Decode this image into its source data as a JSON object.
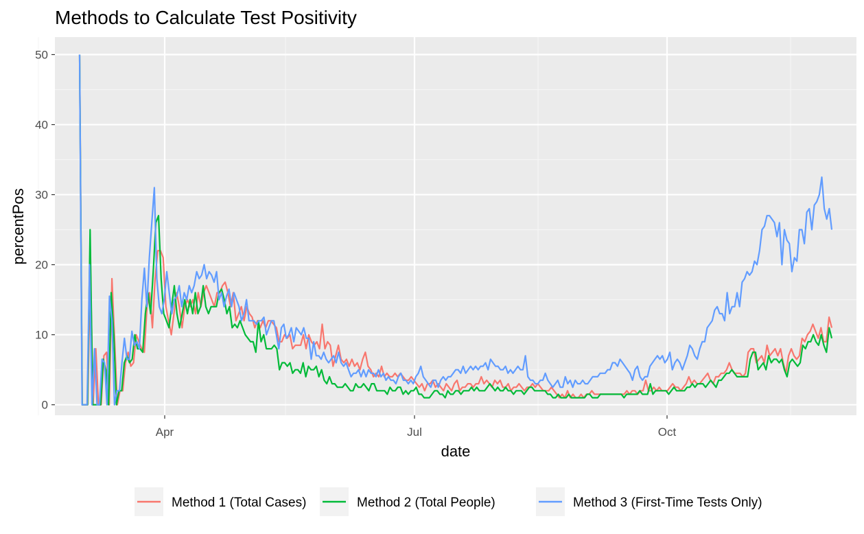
{
  "chart_data": {
    "type": "line",
    "title": "Methods to Calculate Test Positivity",
    "xlabel": "date",
    "ylabel": "percentPos",
    "x_start": "2020-03-01",
    "x_end": "2020-11-30",
    "xlim": [
      "2020-02-21",
      "2020-12-09"
    ],
    "ylim": [
      -1.5,
      52.5
    ],
    "x_ticks": [
      {
        "date": "2020-04-01",
        "label": "Apr"
      },
      {
        "date": "2020-07-01",
        "label": "Jul"
      },
      {
        "date": "2020-10-01",
        "label": "Oct"
      }
    ],
    "x_minor_breaks": [
      "2020-02-15",
      "2020-05-15",
      "2020-08-15",
      "2020-11-15"
    ],
    "y_ticks": [
      0,
      10,
      20,
      30,
      40,
      50
    ],
    "y_minor_breaks": [
      5,
      15,
      25,
      35,
      45
    ],
    "grid": true,
    "legend_position": "bottom",
    "series": [
      {
        "name": "Method 1 (Total Cases)",
        "color": "#F8766D",
        "values": [
          50,
          0,
          0,
          0,
          20,
          0,
          8,
          0,
          0,
          7,
          7.5,
          0,
          18,
          9,
          0,
          2,
          2,
          6,
          7.5,
          5.5,
          6,
          10,
          9,
          8,
          7.5,
          14,
          16,
          11,
          18,
          22,
          22,
          21,
          14,
          12,
          10,
          13,
          16,
          14,
          11,
          14,
          15,
          14,
          15,
          13,
          16,
          14,
          16,
          17,
          16,
          15,
          14,
          16,
          16,
          17,
          17.5,
          16,
          14,
          16,
          12,
          13,
          14,
          12,
          14,
          13,
          12.5,
          11,
          12,
          11,
          12,
          11,
          12,
          12,
          11.5,
          11,
          9,
          9,
          10,
          9.5,
          10,
          8,
          8.5,
          8.5,
          8.5,
          10,
          8,
          10,
          9,
          8.5,
          9,
          8,
          11.5,
          8,
          9,
          8.5,
          5.5,
          7,
          8.5,
          6.5,
          6,
          6.5,
          5.5,
          6.5,
          5.5,
          6,
          5,
          6.5,
          7.5,
          5.5,
          5,
          4,
          4.5,
          4,
          5.5,
          4,
          4.5,
          4,
          4,
          4.5,
          4,
          4.5,
          4,
          3.5,
          3.5,
          4,
          3.5,
          3,
          2.5,
          3,
          2,
          3,
          3,
          3.5,
          2.5,
          3,
          2.5,
          2,
          3,
          2.5,
          2,
          3,
          3.5,
          2,
          2.5,
          2.5,
          3,
          3,
          2.5,
          3,
          3,
          4,
          3,
          3.5,
          3,
          2.5,
          3.5,
          3,
          3.5,
          2.5,
          2.5,
          3,
          2,
          2.5,
          2.5,
          3,
          2.5,
          2,
          2.5,
          2.5,
          3,
          2.5,
          3,
          2.5,
          2,
          2,
          2,
          2.5,
          2,
          1.5,
          1,
          1.5,
          1,
          2,
          1,
          1.5,
          1,
          1,
          1.5,
          1,
          1.5,
          1.5,
          2,
          1.5,
          1.5,
          1.5,
          1.5,
          1.5,
          1.5,
          1.5,
          1.5,
          1.5,
          1.5,
          1.5,
          1.5,
          2,
          1.5,
          2,
          2,
          1.5,
          2,
          2,
          3.5,
          2,
          2,
          2.5,
          2,
          2.5,
          2,
          2,
          2,
          2.5,
          3,
          2.5,
          2.5,
          2,
          2.5,
          3,
          4,
          3,
          3.5,
          3,
          3,
          3.5,
          4,
          4.5,
          3.5,
          3,
          4,
          4,
          4.5,
          4.5,
          5,
          6,
          5,
          4.5,
          4.5,
          4.5,
          4,
          4.5,
          7.5,
          8,
          8,
          6,
          6.5,
          7,
          6,
          8.5,
          7,
          7.5,
          8,
          7,
          8,
          6,
          4.5,
          7,
          8,
          7,
          6.5,
          7,
          9.5,
          9,
          10,
          10.5,
          11.5,
          10.5,
          9.5,
          11,
          9,
          9,
          12.5,
          11
        ]
      },
      {
        "name": "Method 2 (Total People)",
        "color": "#00BA38",
        "values": [
          50,
          0,
          0,
          0,
          25,
          0,
          0,
          0,
          0,
          6.5,
          5,
          0,
          16,
          10,
          0,
          2,
          2,
          6,
          7,
          6,
          6.5,
          10,
          8,
          8,
          7.5,
          13,
          16,
          13,
          19,
          26,
          27,
          18,
          13,
          12,
          11,
          14,
          17,
          13,
          11,
          13,
          15,
          13,
          15,
          13,
          16,
          13,
          14,
          17,
          14,
          13,
          14,
          14,
          14,
          16,
          16.5,
          15,
          13,
          14,
          11,
          11.5,
          11,
          12,
          11,
          10,
          9.5,
          9,
          9,
          7.5,
          12,
          9,
          10,
          8,
          8,
          8,
          8.5,
          8,
          5,
          6,
          6,
          5.5,
          6,
          4.5,
          5,
          5,
          4.5,
          6,
          4,
          5.5,
          5,
          5,
          5.5,
          4,
          5,
          3.5,
          3,
          4,
          3,
          3,
          2.5,
          2.5,
          2.5,
          3,
          2.5,
          2,
          2,
          3,
          2.5,
          2.5,
          3,
          2.5,
          2,
          3,
          3,
          2,
          2,
          2,
          2,
          1.5,
          2.5,
          2,
          2,
          2.5,
          2.5,
          1.5,
          2,
          1.5,
          2,
          2,
          2.5,
          1.5,
          1.5,
          1,
          1,
          1,
          1.5,
          2,
          2,
          1.5,
          1.5,
          1,
          2,
          1.5,
          1.5,
          2,
          2,
          1.5,
          2,
          2,
          2,
          2.5,
          2,
          2.5,
          2,
          2,
          2,
          2.5,
          3,
          2.5,
          2,
          2.5,
          2,
          2,
          2.5,
          2,
          2,
          1.5,
          2,
          2,
          2,
          1.5,
          2,
          2.5,
          2.5,
          2,
          2,
          2,
          2,
          2,
          1.5,
          1.5,
          1,
          1,
          1.5,
          1,
          1,
          1,
          1.5,
          1,
          1,
          1,
          1,
          1,
          1,
          1.5,
          1.5,
          1,
          1,
          1,
          1.5,
          1.5,
          1.5,
          1.5,
          1.5,
          1.5,
          1.5,
          1.5,
          1.5,
          1,
          1.5,
          1.5,
          1.5,
          1.5,
          1.5,
          2,
          1.5,
          1.5,
          1.5,
          3,
          1.5,
          2,
          2,
          2,
          2,
          2,
          1.5,
          2,
          2.5,
          2,
          2,
          2,
          2,
          2.5,
          2.5,
          3,
          2.5,
          3,
          3,
          3,
          2.5,
          3,
          3.5,
          3,
          2.5,
          3.5,
          3.5,
          4,
          4.5,
          4.5,
          5,
          4.5,
          4,
          4,
          4,
          4,
          4,
          6.5,
          7.5,
          7.5,
          5,
          5.5,
          6,
          5,
          7,
          6,
          6.5,
          6.5,
          6,
          6.5,
          5,
          4,
          6,
          6.5,
          6,
          5.5,
          6,
          8.5,
          8,
          9,
          9,
          10,
          9,
          8.5,
          10,
          8.5,
          7.5,
          11,
          9.5
        ]
      },
      {
        "name": "Method 3 (First-Time Tests Only)",
        "color": "#619CFF",
        "values": [
          50,
          0,
          0,
          0,
          20,
          0,
          8,
          0,
          0,
          6.5,
          6,
          0,
          15.5,
          12,
          0,
          2,
          2,
          6,
          9.5,
          6.5,
          6.5,
          10.5,
          8.5,
          9,
          8,
          15,
          19.5,
          14,
          21,
          26,
          31,
          18,
          14,
          13,
          15,
          19,
          16,
          13,
          15,
          15.5,
          17,
          14,
          16,
          15,
          17,
          16,
          17,
          19,
          18,
          18.5,
          20,
          18,
          19,
          18.5,
          17.5,
          19,
          15,
          16,
          14,
          15.5,
          16.5,
          14,
          16,
          15,
          14,
          12,
          13,
          15,
          12,
          12,
          12,
          11.5,
          12,
          12,
          12.5,
          10,
          11,
          12,
          12,
          10,
          8,
          11,
          11.5,
          9.5,
          10,
          11,
          9,
          11,
          10.5,
          10,
          11,
          9.5,
          9.5,
          6.5,
          9,
          7,
          7,
          6.5,
          7.5,
          6.5,
          6,
          6.5,
          7,
          6,
          7.5,
          6,
          5.5,
          6,
          5,
          4,
          4.5,
          4.5,
          5,
          4,
          5,
          4,
          5,
          4.5,
          4.5,
          4,
          5,
          4,
          4.5,
          3.5,
          4,
          3.5,
          3.5,
          3,
          4,
          4.5,
          3.5,
          3.5,
          3,
          3.5,
          3,
          4,
          4.5,
          5.5,
          4,
          3.5,
          3,
          2.5,
          3.5,
          3.5,
          2.5,
          3.5,
          4,
          3.5,
          4,
          4,
          4.5,
          5,
          5,
          4.5,
          5.5,
          4.5,
          5,
          5.5,
          5,
          5.5,
          5,
          5.5,
          5.5,
          6,
          5,
          6.5,
          6,
          5.5,
          5.5,
          5,
          5,
          5.5,
          4.5,
          5,
          4.5,
          5,
          5.5,
          5,
          5,
          7,
          4,
          3.5,
          3.5,
          3,
          3,
          3.5,
          3.5,
          4.5,
          3.5,
          3,
          2.5,
          3,
          3.5,
          2.5,
          2.5,
          4,
          3,
          3.5,
          2.5,
          3.5,
          3,
          3,
          3.5,
          3,
          3,
          3.5,
          4,
          4,
          4,
          4.5,
          4.5,
          4.5,
          5,
          5,
          6,
          6,
          5.5,
          6.5,
          6,
          5.5,
          5,
          4.5,
          3.5,
          5,
          5.5,
          4,
          3.5,
          4,
          4,
          5.5,
          6,
          6.5,
          7,
          6.5,
          7,
          6,
          6.5,
          7.5,
          5,
          6,
          6.5,
          6,
          5,
          6,
          7,
          8.5,
          8,
          7,
          6.5,
          8,
          9,
          9,
          11,
          11.5,
          12,
          13.5,
          14,
          13,
          13,
          12,
          16,
          13,
          14,
          14,
          16,
          14,
          17.5,
          18,
          19,
          18.5,
          19,
          20.5,
          20,
          22,
          25,
          25.5,
          27,
          27,
          26.5,
          26,
          24,
          26,
          20,
          25,
          23.5,
          23,
          19,
          21,
          20.5,
          25,
          25,
          23,
          27.5,
          28,
          25,
          28.5,
          29,
          30,
          32.5,
          28,
          26.5,
          28,
          25
        ]
      }
    ]
  }
}
